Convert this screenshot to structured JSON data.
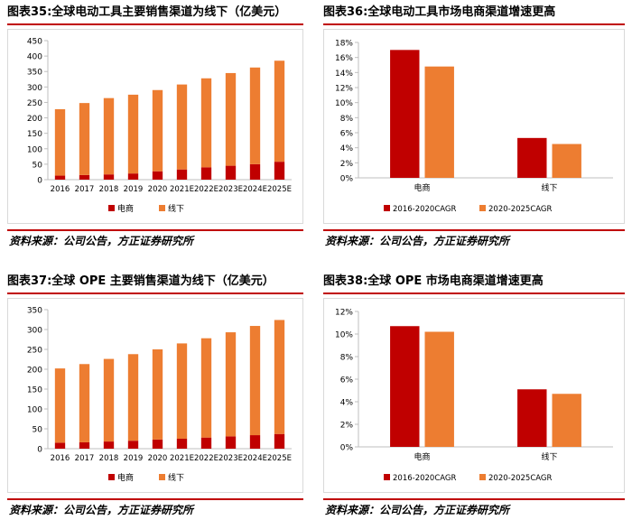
{
  "colors": {
    "online": "#c00000",
    "offline": "#ed7d31",
    "rule": "#c00000",
    "axis": "#bfbfbf"
  },
  "panels": [
    {
      "title": "图表35:全球电动工具主要销售渠道为线下（亿美元）",
      "source": "资料来源：公司公告，方正证券研究所",
      "chart_data": {
        "type": "bar",
        "stacked": true,
        "categories": [
          "2016",
          "2017",
          "2018",
          "2019",
          "2020",
          "2021E",
          "2022E",
          "2023E",
          "2024E",
          "2025E"
        ],
        "series": [
          {
            "name": "电商",
            "values": [
              13,
              15,
              17,
              20,
              27,
              33,
              40,
              45,
              50,
              58
            ]
          },
          {
            "name": "线下",
            "values": [
              215,
              233,
              247,
              255,
              263,
              275,
              288,
              300,
              313,
              327
            ]
          }
        ],
        "ylim": [
          0,
          450
        ],
        "yticks": [
          0,
          50,
          100,
          150,
          200,
          250,
          300,
          350,
          400,
          450
        ],
        "ytick_labels": [
          "0",
          "50",
          "100",
          "150",
          "200",
          "250",
          "300",
          "350",
          "400",
          "450"
        ]
      }
    },
    {
      "title": "图表36:全球电动工具市场电商渠道增速更高",
      "source": "资料来源：公司公告，方正证券研究所",
      "chart_data": {
        "type": "bar",
        "categories": [
          "电商",
          "线下"
        ],
        "series": [
          {
            "name": "2016-2020CAGR",
            "values": [
              17.0,
              5.3
            ]
          },
          {
            "name": "2020-2025CAGR",
            "values": [
              14.8,
              4.5
            ]
          }
        ],
        "ylim": [
          0,
          18
        ],
        "yticks": [
          0,
          2,
          4,
          6,
          8,
          10,
          12,
          14,
          16,
          18
        ],
        "ytick_labels": [
          "0%",
          "2%",
          "4%",
          "6%",
          "8%",
          "10%",
          "12%",
          "14%",
          "16%",
          "18%"
        ]
      }
    },
    {
      "title": "图表37:全球 OPE 主要销售渠道为线下（亿美元）",
      "source": "资料来源：公司公告，方正证券研究所",
      "chart_data": {
        "type": "bar",
        "stacked": true,
        "categories": [
          "2016",
          "2017",
          "2018",
          "2019",
          "2020",
          "2021E",
          "2022E",
          "2023E",
          "2024E",
          "2025E"
        ],
        "series": [
          {
            "name": "电商",
            "values": [
              15,
              16,
              18,
              20,
              23,
              25,
              28,
              31,
              34,
              37
            ]
          },
          {
            "name": "线下",
            "values": [
              187,
              197,
              208,
              218,
              227,
              240,
              250,
              262,
              275,
              287
            ]
          }
        ],
        "ylim": [
          0,
          350
        ],
        "yticks": [
          0,
          50,
          100,
          150,
          200,
          250,
          300,
          350
        ],
        "ytick_labels": [
          "0",
          "50",
          "100",
          "150",
          "200",
          "250",
          "300",
          "350"
        ]
      }
    },
    {
      "title": "图表38:全球 OPE 市场电商渠道增速更高",
      "source": "资料来源：公司公告，方正证券研究所",
      "chart_data": {
        "type": "bar",
        "categories": [
          "电商",
          "线下"
        ],
        "series": [
          {
            "name": "2016-2020CAGR",
            "values": [
              10.7,
              5.1
            ]
          },
          {
            "name": "2020-2025CAGR",
            "values": [
              10.2,
              4.7
            ]
          }
        ],
        "ylim": [
          0,
          12
        ],
        "yticks": [
          0,
          2,
          4,
          6,
          8,
          10,
          12
        ],
        "ytick_labels": [
          "0%",
          "2%",
          "4%",
          "6%",
          "8%",
          "10%",
          "12%"
        ]
      }
    }
  ]
}
